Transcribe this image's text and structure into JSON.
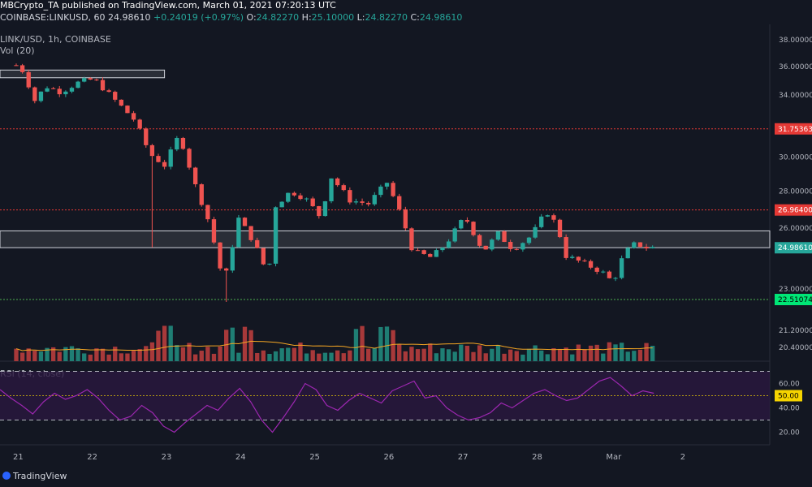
{
  "header": {
    "publisher_line": "MBCrypto_TA published on TradingView.com, March 01, 2021 07:20:13 UTC",
    "symbol": "COINBASE:LINKUSD, 60",
    "last_price": "24.98610",
    "change": "+0.24019 (+0.97%)",
    "open": "24.82270",
    "high": "25.10000",
    "low": "24.82270",
    "close": "24.98610"
  },
  "legend": {
    "symbol": "LINK/USD, 1h, COINBASE",
    "volume": "Vol (20)",
    "rsi": "RSI (14, close)"
  },
  "branding": {
    "text": "TradingView"
  },
  "colors": {
    "background": "#131722",
    "bull": "#26a69a",
    "bear": "#ef5350",
    "vol_bull": "#1f7e74",
    "vol_bear": "#a8393a",
    "vol_ma": "#f5a623",
    "rsi_line": "#9c27b0",
    "rsi_band": "#2a1840",
    "resistance": "#e53935",
    "support": "#4caf50",
    "zone_fill": "#3a3d46",
    "price_badge": "#26a69a",
    "rsi_badge": "#f5d400"
  },
  "chart_data": [
    {
      "type": "candlestick",
      "title": "LINK/USD, 1h, COINBASE",
      "x_ticks": [
        "21",
        "22",
        "23",
        "24",
        "25",
        "26",
        "27",
        "28",
        "Mar",
        "2"
      ],
      "y_ticks": [
        "38.00000",
        "36.00000",
        "34.00000",
        "30.00000",
        "28.00000",
        "26.00000",
        "23.00000",
        "21.20000",
        "20.40000"
      ],
      "y_scale": "log",
      "ylim": [
        20.0,
        38.5
      ],
      "price_labels": [
        {
          "text": "31.75363",
          "value": 31.75363,
          "style": "resistance"
        },
        {
          "text": "26.96400",
          "value": 26.964,
          "style": "resistance"
        },
        {
          "text": "24.98610",
          "value": 24.9861,
          "style": "last"
        },
        {
          "text": "22.51074",
          "value": 22.51074,
          "style": "support"
        }
      ],
      "horizontal_lines": [
        {
          "value": 31.75363,
          "kind": "resistance"
        },
        {
          "value": 26.964,
          "kind": "resistance"
        },
        {
          "value": 22.51074,
          "kind": "support"
        }
      ],
      "zones": [
        {
          "from_day": 0.0,
          "to_day": 2.0,
          "low": 35.2,
          "high": 35.75
        },
        {
          "from_day": 0.0,
          "to_day": 10.4,
          "low": 24.99,
          "high": 25.85
        }
      ],
      "path_points": [
        {
          "day": 0.0,
          "price": 36.1
        },
        {
          "day": 0.15,
          "price": 35.4
        },
        {
          "day": 0.2,
          "price": 33.3
        },
        {
          "day": 0.4,
          "price": 34.6
        },
        {
          "day": 0.6,
          "price": 34.2
        },
        {
          "day": 0.85,
          "price": 34.9
        },
        {
          "day": 1.05,
          "price": 35.1
        },
        {
          "day": 1.3,
          "price": 33.8
        },
        {
          "day": 1.6,
          "price": 32.3
        },
        {
          "day": 1.8,
          "price": 30.2
        },
        {
          "day": 2.0,
          "price": 29.5
        },
        {
          "day": 2.2,
          "price": 31.4
        },
        {
          "day": 2.4,
          "price": 28.5
        },
        {
          "day": 2.6,
          "price": 26.3
        },
        {
          "day": 2.8,
          "price": 23.2
        },
        {
          "day": 3.0,
          "price": 26.5
        },
        {
          "day": 3.2,
          "price": 25.3
        },
        {
          "day": 3.4,
          "price": 23.6
        },
        {
          "day": 3.5,
          "price": 27.2
        },
        {
          "day": 3.7,
          "price": 28.0
        },
        {
          "day": 3.9,
          "price": 27.6
        },
        {
          "day": 4.1,
          "price": 26.6
        },
        {
          "day": 4.25,
          "price": 28.8
        },
        {
          "day": 4.5,
          "price": 27.5
        },
        {
          "day": 4.75,
          "price": 27.3
        },
        {
          "day": 5.0,
          "price": 28.5
        },
        {
          "day": 5.2,
          "price": 26.6
        },
        {
          "day": 5.35,
          "price": 24.8
        },
        {
          "day": 5.6,
          "price": 24.5
        },
        {
          "day": 5.8,
          "price": 25.2
        },
        {
          "day": 6.05,
          "price": 26.6
        },
        {
          "day": 6.3,
          "price": 24.8
        },
        {
          "day": 6.5,
          "price": 25.7
        },
        {
          "day": 6.7,
          "price": 24.9
        },
        {
          "day": 6.95,
          "price": 25.6
        },
        {
          "day": 7.15,
          "price": 26.9
        },
        {
          "day": 7.3,
          "price": 26.1
        },
        {
          "day": 7.4,
          "price": 24.6
        },
        {
          "day": 7.6,
          "price": 24.3
        },
        {
          "day": 7.9,
          "price": 23.8
        },
        {
          "day": 8.05,
          "price": 23.3
        },
        {
          "day": 8.2,
          "price": 24.7
        },
        {
          "day": 8.35,
          "price": 25.2
        },
        {
          "day": 8.5,
          "price": 25.0
        },
        {
          "day": 8.6,
          "price": 24.99
        }
      ],
      "volume": {
        "series": "Vol (20)",
        "baseline": 20.0,
        "max_display": 22.0,
        "spike_days": [
          2.0,
          2.9,
          5.0,
          3.1,
          4.6
        ]
      },
      "day_start": 21,
      "day_label_offset": 0.0
    },
    {
      "type": "line",
      "title": "RSI (14, close)",
      "y_ticks": [
        "60.00",
        "40.00",
        "20.00"
      ],
      "ylim": [
        15,
        75
      ],
      "bands": [
        70,
        30
      ],
      "midline": 50,
      "badge": {
        "text": "50.00",
        "value": 50
      },
      "values": [
        55,
        48,
        42,
        35,
        45,
        52,
        47,
        50,
        55,
        48,
        38,
        30,
        33,
        42,
        36,
        25,
        20,
        28,
        35,
        42,
        38,
        48,
        56,
        45,
        30,
        20,
        32,
        45,
        60,
        55,
        42,
        38,
        46,
        52,
        48,
        44,
        54,
        58,
        62,
        48,
        50,
        40,
        34,
        30,
        32,
        36,
        44,
        40,
        46,
        52,
        55,
        50,
        46,
        48,
        55,
        62,
        65,
        58,
        50,
        54,
        52
      ]
    }
  ]
}
